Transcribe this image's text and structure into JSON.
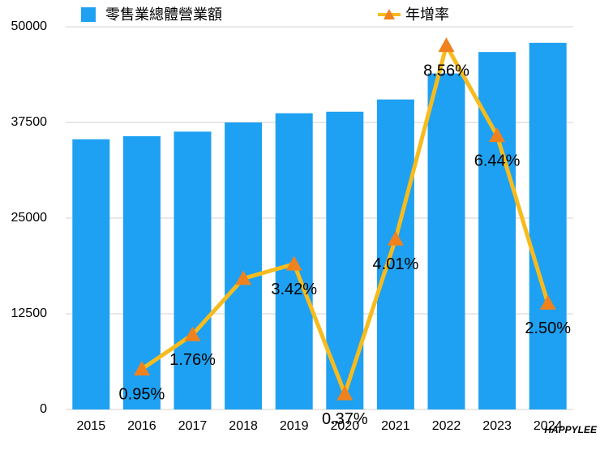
{
  "chart_data": {
    "type": "bar-line",
    "categories": [
      "2015",
      "2016",
      "2017",
      "2018",
      "2019",
      "2020",
      "2021",
      "2022",
      "2023",
      "2024"
    ],
    "series": [
      {
        "name": "零售業總體營業額",
        "type": "bar",
        "color": "#1ea1f2",
        "values": [
          35300,
          35700,
          36300,
          37500,
          38700,
          38900,
          40500,
          43900,
          46700,
          47900
        ]
      },
      {
        "name": "年增率",
        "type": "line",
        "axis": "y2",
        "color": "#f7bb1d",
        "marker_color": "#f0821e",
        "values": [
          null,
          0.95,
          1.76,
          3.08,
          3.42,
          0.37,
          4.01,
          8.56,
          6.44,
          2.5
        ],
        "value_labels": [
          null,
          "0.95%",
          "1.76%",
          null,
          "3.42%",
          "0.37%",
          "4.01%",
          "8.56%",
          "6.44%",
          "2.50%"
        ]
      }
    ],
    "ylim": [
      0,
      50000
    ],
    "yticks": [
      0,
      12500,
      25000,
      37500,
      50000
    ],
    "y2lim": [
      0,
      9
    ],
    "grid": true,
    "watermark": "HAPPYLEE"
  }
}
